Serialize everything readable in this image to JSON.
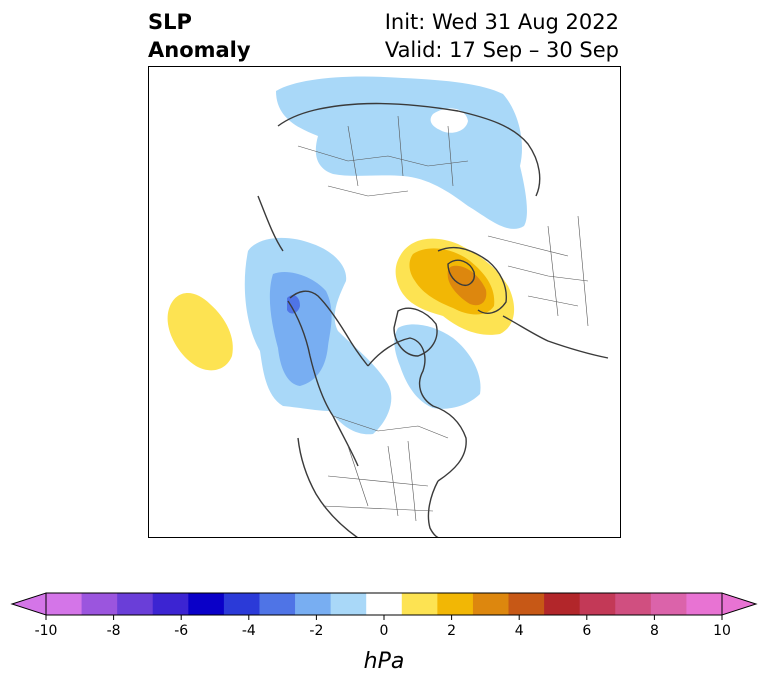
{
  "title": {
    "left_line1": "SLP",
    "left_line2": "Anomaly",
    "init": "Init: Wed 31 Aug 2022",
    "valid": "Valid: 17 Sep – 30 Sep"
  },
  "map": {
    "projection": "north-polar-stereographic",
    "region": "Northern Hemisphere",
    "anomalies": [
      {
        "name": "siberia-negative",
        "level": -1
      },
      {
        "name": "north-pacific-negative",
        "level": -3
      },
      {
        "name": "north-pacific-core",
        "level": -5
      },
      {
        "name": "hudson-bay-negative",
        "level": -1
      },
      {
        "name": "europe-positive",
        "level": 3
      },
      {
        "name": "europe-positive-core",
        "level": 5
      },
      {
        "name": "hawaii-positive",
        "level": 1
      }
    ]
  },
  "colorbar": {
    "label": "hPa",
    "ticks": [
      "-10",
      "-8",
      "-6",
      "-4",
      "-2",
      "0",
      "2",
      "4",
      "6",
      "8",
      "10"
    ],
    "levels": [
      -10,
      -9,
      -8,
      -7,
      -6,
      -5,
      -4,
      -3,
      -2,
      -1,
      1,
      2,
      3,
      4,
      5,
      6,
      7,
      8,
      9,
      10
    ],
    "colors": [
      "#d475e8",
      "#9b55de",
      "#6a3ed8",
      "#3c24d2",
      "#0a00c8",
      "#2b3ad8",
      "#4f74e6",
      "#78aef2",
      "#a9d8f8",
      "#ffffff",
      "#fde352",
      "#f2b705",
      "#dd870e",
      "#c75816",
      "#b2262a",
      "#c33957",
      "#d04f80",
      "#db63aa",
      "#e873d3"
    ],
    "extend_low_color": "#d475e8",
    "extend_high_color": "#e873d3"
  }
}
